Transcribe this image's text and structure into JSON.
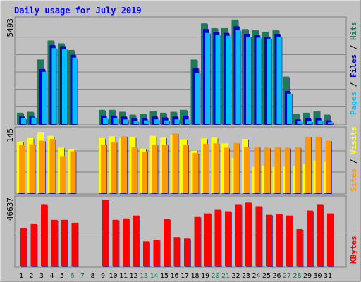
{
  "chart_data": [
    {
      "type": "bar",
      "panel": "hits-files-pages",
      "title": "Daily usage for July 2019",
      "categories": [
        "1",
        "2",
        "3",
        "4",
        "5",
        "6",
        "7",
        "8",
        "9",
        "10",
        "11",
        "12",
        "13",
        "14",
        "15",
        "16",
        "17",
        "18",
        "19",
        "20",
        "21",
        "22",
        "23",
        "24",
        "25",
        "26",
        "27",
        "28",
        "29",
        "30",
        "31"
      ],
      "weekend_days": [
        "6",
        "7",
        "13",
        "14",
        "20",
        "21",
        "27",
        "28"
      ],
      "ymax_label": "5493",
      "ylim": [
        0,
        5493
      ],
      "grid": true,
      "series": [
        {
          "name": "Hits",
          "color": "#1f7a58",
          "values": [
            600,
            650,
            3400,
            4400,
            4250,
            3900,
            0,
            0,
            750,
            750,
            650,
            500,
            550,
            700,
            600,
            650,
            750,
            3400,
            5300,
            5050,
            5050,
            5500,
            5000,
            4950,
            4850,
            4950,
            2500,
            550,
            600,
            700,
            500
          ]
        },
        {
          "name": "Files",
          "color": "#0000cc",
          "values": [
            400,
            400,
            2900,
            4150,
            4100,
            3650,
            0,
            0,
            450,
            450,
            400,
            300,
            300,
            400,
            350,
            400,
            450,
            2950,
            5000,
            4850,
            4800,
            5150,
            4750,
            4700,
            4600,
            4750,
            1750,
            250,
            300,
            300,
            200
          ]
        },
        {
          "name": "Pages",
          "color": "#00bfff",
          "values": [
            300,
            350,
            2750,
            4000,
            3950,
            3500,
            0,
            0,
            300,
            300,
            250,
            150,
            200,
            250,
            200,
            250,
            250,
            2700,
            4800,
            4700,
            4650,
            4950,
            4600,
            4550,
            4500,
            4600,
            1600,
            150,
            150,
            200,
            100
          ]
        }
      ]
    },
    {
      "type": "bar",
      "panel": "visits-sites",
      "categories": [
        "1",
        "2",
        "3",
        "4",
        "5",
        "6",
        "7",
        "8",
        "9",
        "10",
        "11",
        "12",
        "13",
        "14",
        "15",
        "16",
        "17",
        "18",
        "19",
        "20",
        "21",
        "22",
        "23",
        "24",
        "25",
        "26",
        "27",
        "28",
        "29",
        "30",
        "31"
      ],
      "ymax_label": "145",
      "ylim": [
        0,
        145
      ],
      "grid": true,
      "series": [
        {
          "name": "Visits",
          "color": "#ffff00",
          "values": [
            118,
            126,
            140,
            131,
            104,
            100,
            0,
            0,
            126,
            130,
            126,
            128,
            102,
            131,
            127,
            133,
            123,
            97,
            125,
            127,
            114,
            81,
            124,
            60,
            63,
            60,
            61,
            62,
            66,
            75,
            71
          ]
        },
        {
          "name": "Sites",
          "color": "#ff9900",
          "values": [
            110,
            112,
            120,
            124,
            85,
            96,
            0,
            0,
            111,
            117,
            130,
            105,
            95,
            111,
            111,
            137,
            111,
            92,
            113,
            114,
            104,
            115,
            106,
            106,
            104,
            105,
            104,
            105,
            129,
            129,
            120
          ]
        }
      ]
    },
    {
      "type": "bar",
      "panel": "kbytes",
      "categories": [
        "1",
        "2",
        "3",
        "4",
        "5",
        "6",
        "7",
        "8",
        "9",
        "10",
        "11",
        "12",
        "13",
        "14",
        "15",
        "16",
        "17",
        "18",
        "19",
        "20",
        "21",
        "22",
        "23",
        "24",
        "25",
        "26",
        "27",
        "28",
        "29",
        "30",
        "31"
      ],
      "ymax_label": "46637",
      "ylim": [
        0,
        46637
      ],
      "grid": true,
      "series": [
        {
          "name": "KBytes",
          "color": "#ff0000",
          "values": [
            26500,
            29500,
            43000,
            32500,
            32500,
            30500,
            0,
            0,
            46637,
            32500,
            33500,
            35500,
            17500,
            18500,
            33000,
            20500,
            19500,
            34500,
            37000,
            39500,
            38500,
            43000,
            44500,
            42000,
            36000,
            36500,
            35500,
            26000,
            39000,
            43000,
            37000
          ]
        }
      ]
    }
  ],
  "colors": {
    "background": "#c0c0c0",
    "title": "#0000ff",
    "weekday_label": "#000000",
    "weekend_label": "#00805a"
  },
  "labels": {
    "hits": "Hits",
    "files": "Files",
    "pages": "Pages",
    "visits": "Visits",
    "sites": "Sites",
    "kbytes": "KBytes"
  }
}
